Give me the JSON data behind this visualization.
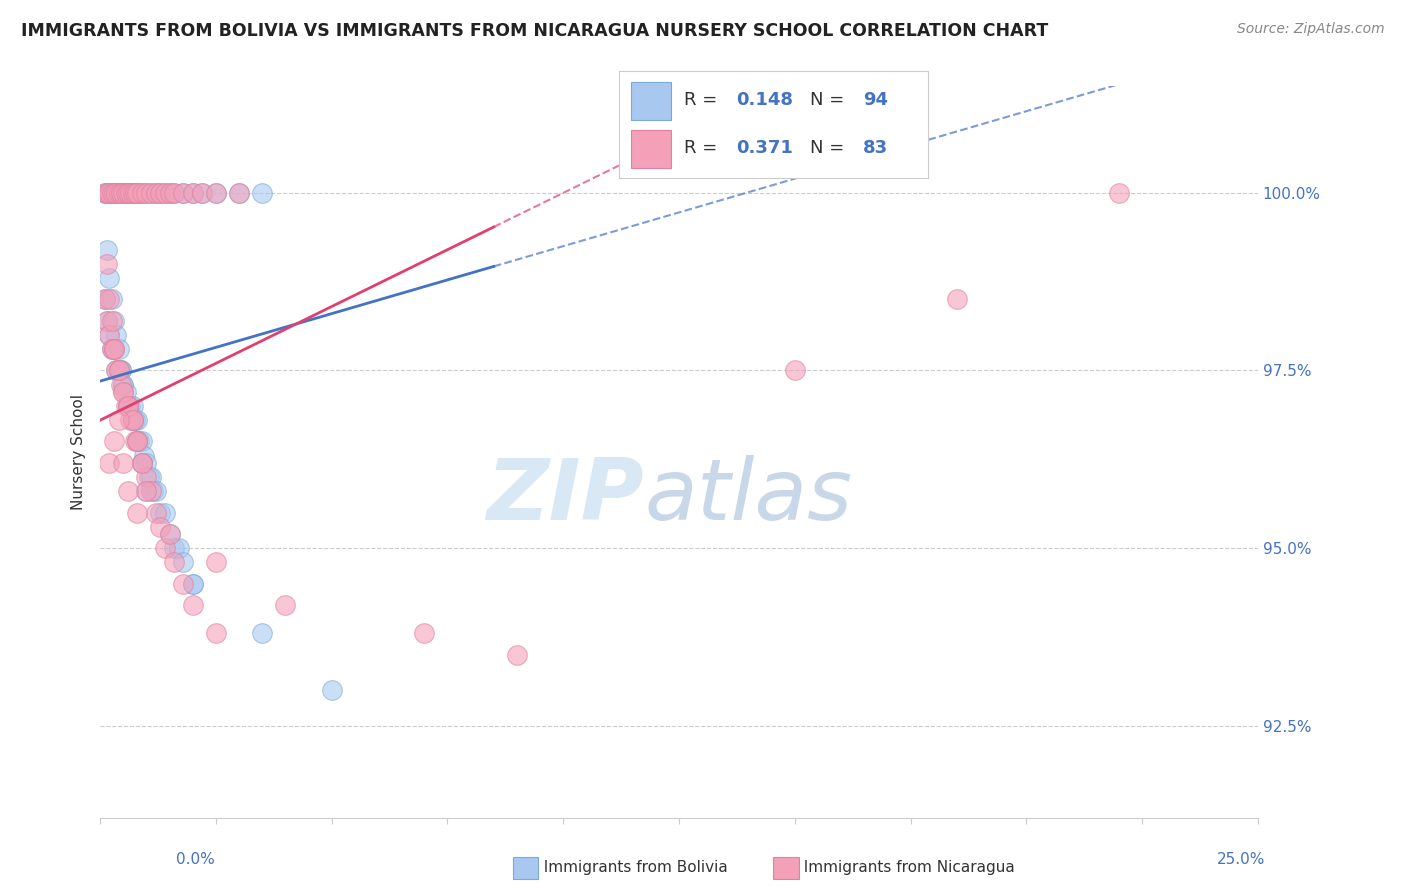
{
  "title": "IMMIGRANTS FROM BOLIVIA VS IMMIGRANTS FROM NICARAGUA NURSERY SCHOOL CORRELATION CHART",
  "source": "Source: ZipAtlas.com",
  "ylabel": "Nursery School",
  "yticks": [
    92.5,
    95.0,
    97.5,
    100.0
  ],
  "xlim": [
    0.0,
    25.0
  ],
  "ylim": [
    91.2,
    101.5
  ],
  "blue_color": "#A8C8F0",
  "pink_color": "#F4A0B8",
  "blue_line_color": "#4472C4",
  "pink_line_color": "#E04070",
  "watermark_color": "#D8E8F5",
  "blue_r": "0.148",
  "blue_n": "94",
  "pink_r": "0.371",
  "pink_n": "83",
  "blue_x": [
    0.1,
    0.15,
    0.2,
    0.25,
    0.3,
    0.35,
    0.4,
    0.5,
    0.55,
    0.6,
    0.65,
    0.7,
    0.75,
    0.8,
    0.85,
    0.9,
    1.0,
    1.1,
    1.2,
    1.3,
    1.4,
    1.5,
    1.6,
    1.8,
    2.0,
    2.2,
    2.5,
    3.0,
    3.5,
    0.1,
    0.15,
    0.2,
    0.25,
    0.3,
    0.35,
    0.4,
    0.45,
    0.5,
    0.55,
    0.6,
    0.65,
    0.7,
    0.75,
    0.8,
    0.85,
    0.9,
    0.95,
    1.0,
    1.05,
    1.1,
    1.15,
    1.2,
    1.3,
    1.4,
    1.5,
    1.6,
    1.7,
    1.8,
    2.0,
    0.15,
    0.2,
    0.25,
    0.3,
    0.35,
    0.4,
    0.45,
    0.5,
    0.6,
    0.7,
    0.8,
    0.9,
    1.0,
    2.0,
    3.5,
    5.0
  ],
  "blue_y": [
    100.0,
    100.0,
    100.0,
    100.0,
    100.0,
    100.0,
    100.0,
    100.0,
    100.0,
    100.0,
    100.0,
    100.0,
    100.0,
    100.0,
    100.0,
    100.0,
    100.0,
    100.0,
    100.0,
    100.0,
    100.0,
    100.0,
    100.0,
    100.0,
    100.0,
    100.0,
    100.0,
    100.0,
    100.0,
    98.5,
    98.2,
    98.0,
    97.8,
    97.8,
    97.5,
    97.5,
    97.5,
    97.3,
    97.2,
    97.0,
    97.0,
    97.0,
    96.8,
    96.8,
    96.5,
    96.5,
    96.3,
    96.2,
    96.0,
    96.0,
    95.8,
    95.8,
    95.5,
    95.5,
    95.2,
    95.0,
    95.0,
    94.8,
    94.5,
    99.2,
    98.8,
    98.5,
    98.2,
    98.0,
    97.8,
    97.5,
    97.3,
    97.0,
    96.8,
    96.5,
    96.2,
    95.8,
    94.5,
    93.8,
    93.0
  ],
  "pink_x": [
    0.1,
    0.15,
    0.2,
    0.25,
    0.3,
    0.35,
    0.4,
    0.45,
    0.5,
    0.55,
    0.6,
    0.65,
    0.7,
    0.75,
    0.8,
    0.9,
    1.0,
    1.1,
    1.2,
    1.3,
    1.4,
    1.5,
    1.6,
    1.8,
    2.0,
    2.2,
    2.5,
    3.0,
    0.1,
    0.15,
    0.2,
    0.25,
    0.3,
    0.35,
    0.4,
    0.45,
    0.5,
    0.55,
    0.6,
    0.65,
    0.7,
    0.75,
    0.8,
    0.9,
    1.0,
    1.1,
    1.2,
    1.3,
    1.4,
    1.6,
    1.8,
    2.0,
    2.5,
    0.15,
    0.2,
    0.25,
    0.3,
    0.4,
    0.5,
    0.6,
    0.7,
    0.8,
    0.9,
    1.0,
    1.5,
    2.5,
    4.0,
    7.0,
    9.0,
    15.0,
    18.5,
    22.0,
    0.2,
    0.3,
    0.4,
    0.5,
    0.6,
    0.8
  ],
  "pink_y": [
    100.0,
    100.0,
    100.0,
    100.0,
    100.0,
    100.0,
    100.0,
    100.0,
    100.0,
    100.0,
    100.0,
    100.0,
    100.0,
    100.0,
    100.0,
    100.0,
    100.0,
    100.0,
    100.0,
    100.0,
    100.0,
    100.0,
    100.0,
    100.0,
    100.0,
    100.0,
    100.0,
    100.0,
    98.5,
    98.2,
    98.0,
    97.8,
    97.8,
    97.5,
    97.5,
    97.3,
    97.2,
    97.0,
    97.0,
    96.8,
    96.8,
    96.5,
    96.5,
    96.2,
    96.0,
    95.8,
    95.5,
    95.3,
    95.0,
    94.8,
    94.5,
    94.2,
    93.8,
    99.0,
    98.5,
    98.2,
    97.8,
    97.5,
    97.2,
    97.0,
    96.8,
    96.5,
    96.2,
    95.8,
    95.2,
    94.8,
    94.2,
    93.8,
    93.5,
    97.5,
    98.5,
    100.0,
    96.2,
    96.5,
    96.8,
    96.2,
    95.8,
    95.5
  ]
}
